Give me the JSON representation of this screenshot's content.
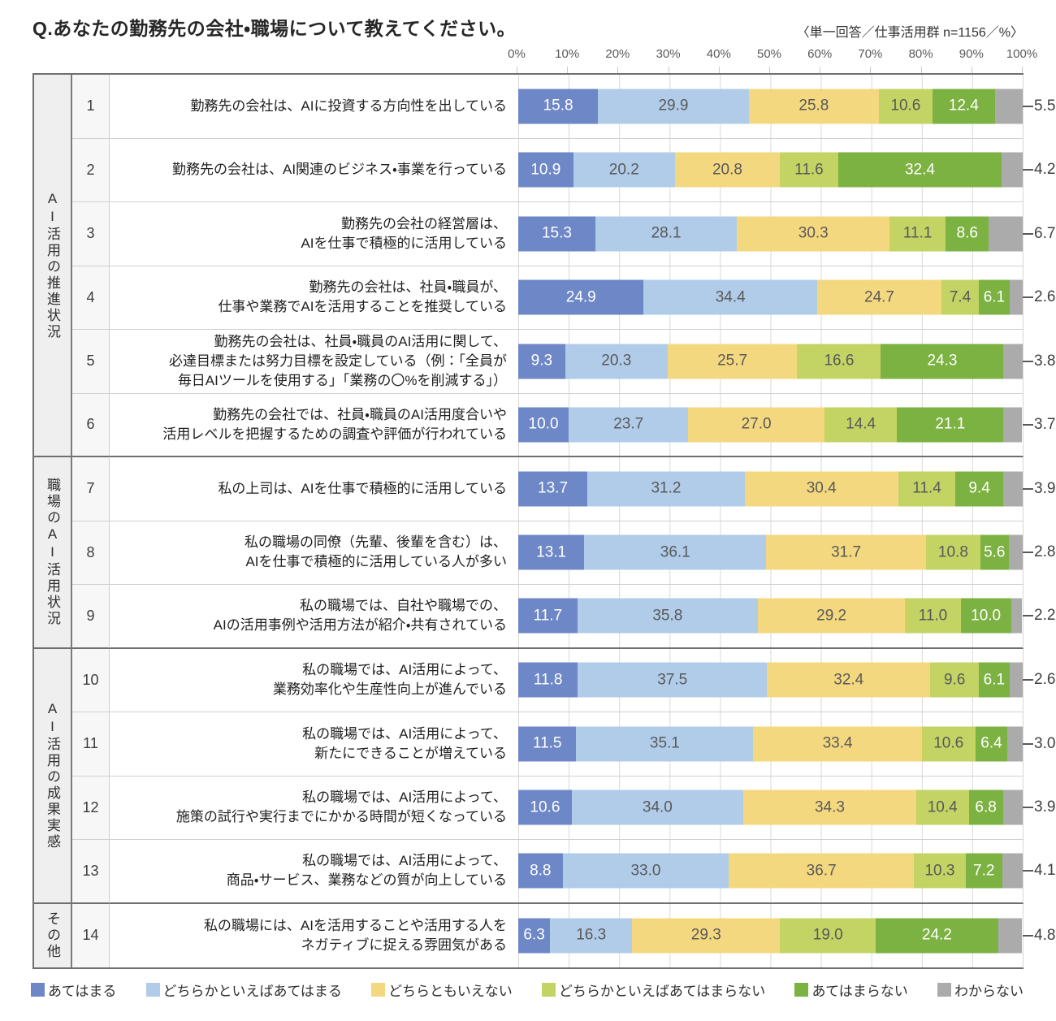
{
  "title": "Q.あなたの勤務先の会社・職場について教えてください。",
  "note": "〈単一回答／仕事活用群 n=1156／%〉",
  "axis_ticks": [
    "0%",
    "10%",
    "20%",
    "30%",
    "40%",
    "50%",
    "60%",
    "70%",
    "80%",
    "90%",
    "100%"
  ],
  "legend": [
    {
      "label": "あてはまる",
      "color": "#6e87c6"
    },
    {
      "label": "どちらかといえばあてはまる",
      "color": "#b0cce9"
    },
    {
      "label": "どちらともいえない",
      "color": "#f4d87f"
    },
    {
      "label": "どちらかといえばあてはまらない",
      "color": "#c3d364"
    },
    {
      "label": "あてはまらない",
      "color": "#7cb241"
    },
    {
      "label": "わからない",
      "color": "#ababab"
    }
  ],
  "groups": [
    {
      "label": "AI活用の推進状況",
      "start": 1,
      "count": 6
    },
    {
      "label": "職場のAI活用状況",
      "start": 7,
      "count": 3
    },
    {
      "label": "AI活用の成果実感",
      "start": 10,
      "count": 4
    },
    {
      "label": "その他",
      "start": 14,
      "count": 1
    }
  ],
  "rows": [
    {
      "no": "1",
      "label_lines": [
        "勤務先の会社は、AIに投資する方向性を出している"
      ],
      "values": [
        15.8,
        29.9,
        25.8,
        10.6,
        12.4,
        5.5
      ]
    },
    {
      "no": "2",
      "label_lines": [
        "勤務先の会社は、AI関連のビジネス・事業を行っている"
      ],
      "values": [
        10.9,
        20.2,
        20.8,
        11.6,
        32.4,
        4.2
      ]
    },
    {
      "no": "3",
      "label_lines": [
        "勤務先の会社の経営層は、",
        "AIを仕事で積極的に活用している"
      ],
      "values": [
        15.3,
        28.1,
        30.3,
        11.1,
        8.6,
        6.7
      ]
    },
    {
      "no": "4",
      "label_lines": [
        "勤務先の会社は、社員・職員が、",
        "仕事や業務でAIを活用することを推奨している"
      ],
      "values": [
        24.9,
        34.4,
        24.7,
        7.4,
        6.1,
        2.6
      ]
    },
    {
      "no": "5",
      "label_lines": [
        "勤務先の会社は、社員・職員のAI活用に関して、",
        "必達目標または努力目標を設定している（例：「全員が",
        "毎日AIツールを使用する」「業務の〇%を削減する」）"
      ],
      "values": [
        9.3,
        20.3,
        25.7,
        16.6,
        24.3,
        3.8
      ]
    },
    {
      "no": "6",
      "label_lines": [
        "勤務先の会社では、社員・職員のAI活用度合いや",
        "活用レベルを把握するための調査や評価が行われている"
      ],
      "values": [
        10.0,
        23.7,
        27.0,
        14.4,
        21.1,
        3.7
      ]
    },
    {
      "no": "7",
      "label_lines": [
        "私の上司は、AIを仕事で積極的に活用している"
      ],
      "values": [
        13.7,
        31.2,
        30.4,
        11.4,
        9.4,
        3.9
      ]
    },
    {
      "no": "8",
      "label_lines": [
        "私の職場の同僚（先輩、後輩を含む）は、",
        "AIを仕事で積極的に活用している人が多い"
      ],
      "values": [
        13.1,
        36.1,
        31.7,
        10.8,
        5.6,
        2.8
      ]
    },
    {
      "no": "9",
      "label_lines": [
        "私の職場では、自社や職場での、",
        "AIの活用事例や活用方法が紹介・共有されている"
      ],
      "values": [
        11.7,
        35.8,
        29.2,
        11.0,
        10.0,
        2.2
      ]
    },
    {
      "no": "10",
      "label_lines": [
        "私の職場では、AI活用によって、",
        "業務効率化や生産性向上が進んでいる"
      ],
      "values": [
        11.8,
        37.5,
        32.4,
        9.6,
        6.1,
        2.6
      ]
    },
    {
      "no": "11",
      "label_lines": [
        "私の職場では、AI活用によって、",
        "新たにできることが増えている"
      ],
      "values": [
        11.5,
        35.1,
        33.4,
        10.6,
        6.4,
        3.0
      ]
    },
    {
      "no": "12",
      "label_lines": [
        "私の職場では、AI活用によって、",
        "施策の試行や実行までにかかる時間が短くなっている"
      ],
      "values": [
        10.6,
        34.0,
        34.3,
        10.4,
        6.8,
        3.9
      ]
    },
    {
      "no": "13",
      "label_lines": [
        "私の職場では、AI活用によって、",
        "商品・サービス、業務などの質が向上している"
      ],
      "values": [
        8.8,
        33.0,
        36.7,
        10.3,
        7.2,
        4.1
      ]
    },
    {
      "no": "14",
      "label_lines": [
        "私の職場には、AIを活用することや活用する人を",
        "ネガティブに捉える雰囲気がある"
      ],
      "values": [
        6.3,
        16.3,
        29.3,
        19.0,
        24.2,
        4.8
      ]
    }
  ],
  "chart_data": {
    "type": "bar",
    "orientation": "horizontal",
    "stacked": true,
    "title": "Q.あなたの勤務先の会社・職場について教えてください。",
    "subtitle": "〈単一回答／仕事活用群 n=1156／%〉",
    "xlabel": "%",
    "ylabel": "",
    "xlim": [
      0,
      100
    ],
    "x_ticks": [
      0,
      10,
      20,
      30,
      40,
      50,
      60,
      70,
      80,
      90,
      100
    ],
    "grid": true,
    "legend_position": "bottom",
    "category_groups": [
      {
        "label": "AI活用の推進状況",
        "items": [
          1,
          2,
          3,
          4,
          5,
          6
        ]
      },
      {
        "label": "職場のAI活用状況",
        "items": [
          7,
          8,
          9
        ]
      },
      {
        "label": "AI活用の成果実感",
        "items": [
          10,
          11,
          12,
          13
        ]
      },
      {
        "label": "その他",
        "items": [
          14
        ]
      }
    ],
    "categories": [
      "勤務先の会社は、AIに投資する方向性を出している",
      "勤務先の会社は、AI関連のビジネス・事業を行っている",
      "勤務先の会社の経営層は、AIを仕事で積極的に活用している",
      "勤務先の会社は、社員・職員が、仕事や業務でAIを活用することを推奨している",
      "勤務先の会社は、社員・職員のAI活用に関して、必達目標または努力目標を設定している（例：「全員が毎日AIツールを使用する」「業務の〇%を削減する」）",
      "勤務先の会社では、社員・職員のAI活用度合いや活用レベルを把握するための調査や評価が行われている",
      "私の上司は、AIを仕事で積極的に活用している",
      "私の職場の同僚（先輩、後輩を含む）は、AIを仕事で積極的に活用している人が多い",
      "私の職場では、自社や職場での、AIの活用事例や活用方法が紹介・共有されている",
      "私の職場では、AI活用によって、業務効率化や生産性向上が進んでいる",
      "私の職場では、AI活用によって、新たにできることが増えている",
      "私の職場では、AI活用によって、施策の試行や実行までにかかる時間が短くなっている",
      "私の職場では、AI活用によって、商品・サービス、業務などの質が向上している",
      "私の職場には、AIを活用することや活用する人をネガティブに捉える雰囲気がある"
    ],
    "series": [
      {
        "name": "あてはまる",
        "color": "#6e87c6",
        "values": [
          15.8,
          10.9,
          15.3,
          24.9,
          9.3,
          10.0,
          13.7,
          13.1,
          11.7,
          11.8,
          11.5,
          10.6,
          8.8,
          6.3
        ]
      },
      {
        "name": "どちらかといえばあてはまる",
        "color": "#b0cce9",
        "values": [
          29.9,
          20.2,
          28.1,
          34.4,
          20.3,
          23.7,
          31.2,
          36.1,
          35.8,
          37.5,
          35.1,
          34.0,
          33.0,
          16.3
        ]
      },
      {
        "name": "どちらともいえない",
        "color": "#f4d87f",
        "values": [
          25.8,
          20.8,
          30.3,
          24.7,
          25.7,
          27.0,
          30.4,
          31.7,
          29.2,
          32.4,
          33.4,
          34.3,
          36.7,
          29.3
        ]
      },
      {
        "name": "どちらかといえばあてはまらない",
        "color": "#c3d364",
        "values": [
          10.6,
          11.6,
          11.1,
          7.4,
          16.6,
          14.4,
          11.4,
          10.8,
          11.0,
          9.6,
          10.6,
          10.4,
          10.3,
          19.0
        ]
      },
      {
        "name": "あてはまらない",
        "color": "#7cb241",
        "values": [
          12.4,
          32.4,
          8.6,
          6.1,
          24.3,
          21.1,
          9.4,
          5.6,
          10.0,
          6.1,
          6.4,
          6.8,
          7.2,
          24.2
        ]
      },
      {
        "name": "わからない",
        "color": "#ababab",
        "values": [
          5.5,
          4.2,
          6.7,
          2.6,
          3.8,
          3.7,
          3.9,
          2.8,
          2.2,
          2.6,
          3.0,
          3.9,
          4.1,
          4.8
        ]
      }
    ]
  }
}
